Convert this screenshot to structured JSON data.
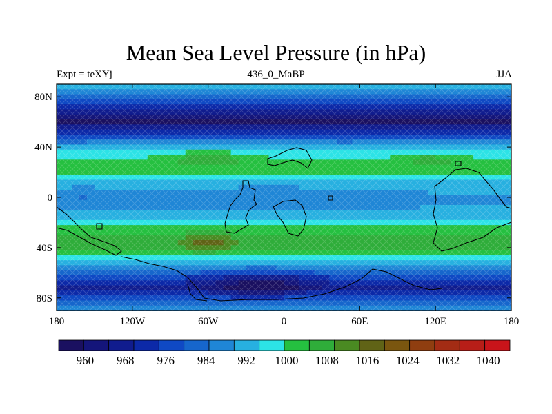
{
  "title": "Mean Sea Level Pressure (in hPa)",
  "left_label": "Expt = teXYj",
  "center_label": "436_0_MaBP",
  "right_label": "JJA",
  "colors": {
    "colorbar": [
      "#1a1060",
      "#14157a",
      "#101c8e",
      "#0c29a8",
      "#0f49c4",
      "#1666cc",
      "#1f86d6",
      "#27b0e0",
      "#2ce3e6",
      "#25c040",
      "#2fad3a",
      "#4a8a22",
      "#606316",
      "#7a560f",
      "#8f3e10",
      "#a32c14",
      "#b71e18",
      "#c8141a"
    ],
    "land_outline": "#000000"
  },
  "chart_data": {
    "type": "heatmap",
    "title": "Mean Sea Level Pressure (in hPa)",
    "xlim": [
      -180,
      180
    ],
    "ylim": [
      -90,
      90
    ],
    "x_ticks": [
      {
        "value": -180,
        "label": "180"
      },
      {
        "value": -120,
        "label": "120W"
      },
      {
        "value": -60,
        "label": "60W"
      },
      {
        "value": 0,
        "label": "0"
      },
      {
        "value": 60,
        "label": "60E"
      },
      {
        "value": 120,
        "label": "120E"
      },
      {
        "value": 180,
        "label": "180"
      }
    ],
    "y_ticks": [
      {
        "value": 80,
        "label": "80N"
      },
      {
        "value": 40,
        "label": "40N"
      },
      {
        "value": 0,
        "label": "0"
      },
      {
        "value": -40,
        "label": "40S"
      },
      {
        "value": -80,
        "label": "80S"
      }
    ],
    "levels": [
      960,
      964,
      968,
      972,
      976,
      980,
      984,
      988,
      992,
      996,
      1000,
      1004,
      1008,
      1012,
      1016,
      1020,
      1024,
      1028,
      1032,
      1036,
      1040
    ],
    "colorbar_labels": [
      "960",
      "968",
      "976",
      "984",
      "992",
      "1000",
      "1008",
      "1016",
      "1024",
      "1032",
      "1040"
    ],
    "lat_profile": [
      {
        "lat": 90,
        "value": 997
      },
      {
        "lat": 80,
        "value": 985
      },
      {
        "lat": 70,
        "value": 972
      },
      {
        "lat": 60,
        "value": 964
      },
      {
        "lat": 50,
        "value": 978
      },
      {
        "lat": 40,
        "value": 993
      },
      {
        "lat": 30,
        "value": 1002
      },
      {
        "lat": 20,
        "value": 1001
      },
      {
        "lat": 10,
        "value": 994
      },
      {
        "lat": 0,
        "value": 990
      },
      {
        "lat": -10,
        "value": 992
      },
      {
        "lat": -20,
        "value": 998
      },
      {
        "lat": -30,
        "value": 1005
      },
      {
        "lat": -38,
        "value": 1007
      },
      {
        "lat": -45,
        "value": 1002
      },
      {
        "lat": -55,
        "value": 990
      },
      {
        "lat": -65,
        "value": 978
      },
      {
        "lat": -72,
        "value": 972
      },
      {
        "lat": -80,
        "value": 982
      },
      {
        "lat": -90,
        "value": 993
      }
    ],
    "anomalies": [
      {
        "lon": -60,
        "lat": 32,
        "dlon": 28,
        "dlat": 8,
        "amp": 8
      },
      {
        "lon": 115,
        "lat": 30,
        "dlon": 20,
        "dlat": 6,
        "amp": 6
      },
      {
        "lon": -60,
        "lat": -36,
        "dlon": 22,
        "dlat": 7,
        "amp": 10
      },
      {
        "lon": -20,
        "lat": -70,
        "dlon": 40,
        "dlat": 10,
        "amp": -14
      },
      {
        "lon": -10,
        "lat": 0,
        "dlon": 70,
        "dlat": 12,
        "amp": -3
      },
      {
        "lon": -160,
        "lat": 0,
        "dlon": 25,
        "dlat": 12,
        "amp": -3
      }
    ]
  }
}
